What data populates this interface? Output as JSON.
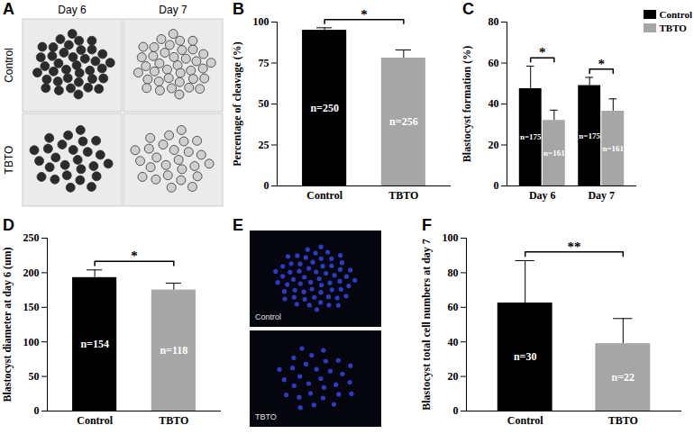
{
  "chart_data": [
    {
      "panel": "A",
      "type": "image",
      "columns": [
        "Day 6",
        "Day 7"
      ],
      "rows": [
        "Control",
        "TBTO"
      ]
    },
    {
      "panel": "B",
      "type": "bar",
      "y_label": "Percentage of cleavage (%)",
      "categories": [
        "Control",
        "TBTO"
      ],
      "values": [
        95,
        78
      ],
      "errors": [
        1.5,
        5
      ],
      "colors": [
        "#000000",
        "#a6a6a6"
      ],
      "n_labels": [
        "n=250",
        "n=256"
      ],
      "significance": "*",
      "ylim": [
        0,
        100
      ],
      "yticks": [
        0,
        25,
        50,
        75,
        100
      ]
    },
    {
      "panel": "C",
      "type": "bar",
      "y_label": "Blastocyst formation (%)",
      "categories": [
        "Day 6",
        "Day 7"
      ],
      "series": [
        {
          "name": "Control",
          "color": "#000000",
          "values": [
            47.5,
            49
          ],
          "errors": [
            11,
            4
          ],
          "n_labels": [
            "n=175",
            "n=175"
          ]
        },
        {
          "name": "TBTO",
          "color": "#a6a6a6",
          "values": [
            32,
            36.5
          ],
          "errors": [
            5,
            6
          ],
          "n_labels": [
            "n=161",
            "n=161"
          ]
        }
      ],
      "significance": [
        "*",
        "*"
      ],
      "legend": "top-right",
      "ylim": [
        0,
        80
      ],
      "yticks": [
        0,
        20,
        40,
        60,
        80
      ]
    },
    {
      "panel": "D",
      "type": "bar",
      "y_label": "Blastocyst diameter at day 6 (um)",
      "categories": [
        "Control",
        "TBTO"
      ],
      "values": [
        193,
        175
      ],
      "errors": [
        11,
        10
      ],
      "colors": [
        "#000000",
        "#a6a6a6"
      ],
      "n_labels": [
        "n=154",
        "n=118"
      ],
      "significance": "*",
      "ylim": [
        0,
        250
      ],
      "yticks": [
        0,
        50,
        100,
        150,
        200,
        250
      ]
    },
    {
      "panel": "E",
      "type": "image",
      "labels": [
        "Control",
        "TBTO"
      ]
    },
    {
      "panel": "F",
      "type": "bar",
      "y_label": "Blastocyst total cell numbers at day 7",
      "categories": [
        "Control",
        "TBTO"
      ],
      "values": [
        62.5,
        39
      ],
      "errors": [
        24.5,
        14.5
      ],
      "colors": [
        "#000000",
        "#a6a6a6"
      ],
      "n_labels": [
        "n=30",
        "n=22"
      ],
      "significance": "**",
      "ylim": [
        0,
        100
      ],
      "yticks": [
        0,
        20,
        40,
        60,
        80,
        100
      ]
    }
  ]
}
